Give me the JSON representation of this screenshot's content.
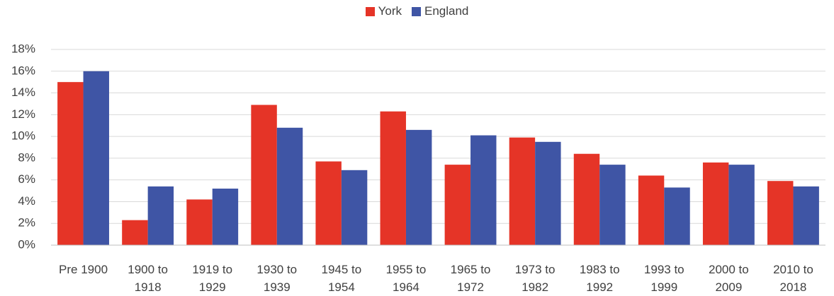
{
  "chart_data": {
    "type": "bar",
    "categories": [
      "Pre 1900",
      "1900 to 1918",
      "1919 to 1929",
      "1930 to 1939",
      "1945 to 1954",
      "1955 to 1964",
      "1965 to 1972",
      "1973 to 1982",
      "1983 to 1992",
      "1993 to 1999",
      "2000 to 2009",
      "2010 to 2018"
    ],
    "series": [
      {
        "name": "York",
        "color": "#e53427",
        "values": [
          15.0,
          2.3,
          4.2,
          12.9,
          7.7,
          12.3,
          7.4,
          9.9,
          8.4,
          6.4,
          7.6,
          5.9
        ]
      },
      {
        "name": "England",
        "color": "#3f55a5",
        "values": [
          16.0,
          5.4,
          5.2,
          10.8,
          6.9,
          10.6,
          10.1,
          9.5,
          7.4,
          5.3,
          7.4,
          5.4
        ]
      }
    ],
    "ylim": [
      0,
      18
    ],
    "yticks": [
      {
        "value": 0,
        "label": "0%"
      },
      {
        "value": 2,
        "label": "2%"
      },
      {
        "value": 4,
        "label": "4%"
      },
      {
        "value": 6,
        "label": "6%"
      },
      {
        "value": 8,
        "label": "8%"
      },
      {
        "value": 10,
        "label": "10%"
      },
      {
        "value": 12,
        "label": "12%"
      },
      {
        "value": 14,
        "label": "14%"
      },
      {
        "value": 16,
        "label": "16%"
      },
      {
        "value": 18,
        "label": "18%"
      }
    ],
    "grid": true,
    "legend": "top"
  }
}
